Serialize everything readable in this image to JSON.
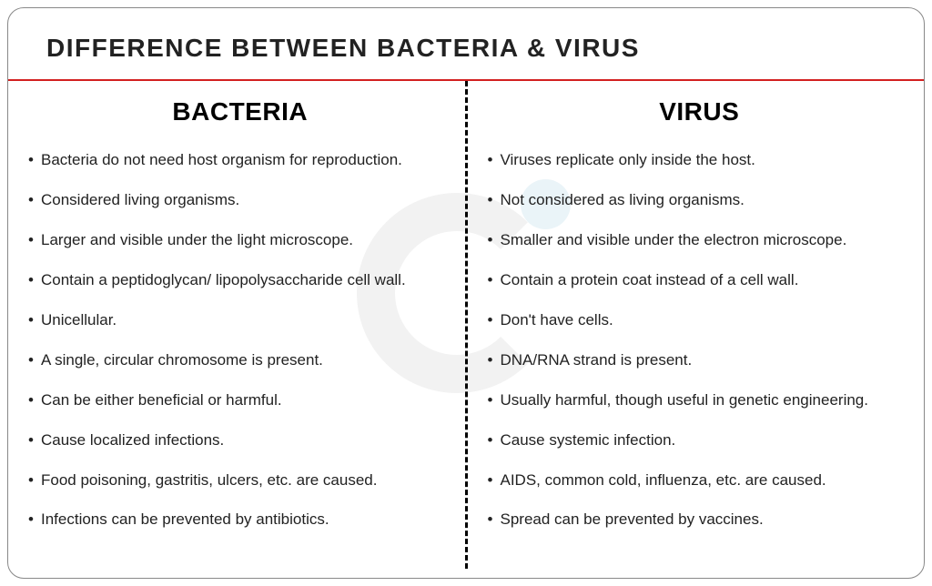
{
  "title": "DIFFERENCE BETWEEN BACTERIA & VIRUS",
  "divider_color": "#d32020",
  "columns": {
    "left": {
      "heading": "BACTERIA",
      "items": [
        "Bacteria do not need host organism for reproduction.",
        "Considered living organisms.",
        "Larger and visible under the light microscope.",
        "Contain a peptidoglycan/ lipopolysaccharide cell wall.",
        "Unicellular.",
        "A single, circular chromosome is present.",
        "Can be either beneficial or harmful.",
        "Cause localized infections.",
        "Food poisoning, gastritis, ulcers, etc. are caused.",
        "Infections can be prevented by antibiotics."
      ]
    },
    "right": {
      "heading": "VIRUS",
      "items": [
        "Viruses replicate only inside the host.",
        "Not considered as living organisms.",
        "Smaller and visible under the electron microscope.",
        "Contain a protein coat instead of a cell wall.",
        "Don't have cells.",
        "DNA/RNA strand is present.",
        "Usually harmful, though useful in genetic engineering.",
        "Cause systemic infection.",
        "AIDS, common cold, influenza, etc. are caused.",
        "Spread can be prevented by vaccines."
      ]
    }
  },
  "styling": {
    "container_border_color": "#888",
    "container_border_radius": 18,
    "title_fontsize": 28,
    "title_color": "#222",
    "column_title_fontsize": 28,
    "column_title_color": "#000",
    "bullet_fontsize": 17,
    "bullet_color": "#222",
    "bullet_spacing": 21,
    "dashed_divider_color": "#000",
    "watermark_gray": "#f2f2f2",
    "watermark_blue": "#eaf4f8",
    "background": "#ffffff"
  }
}
